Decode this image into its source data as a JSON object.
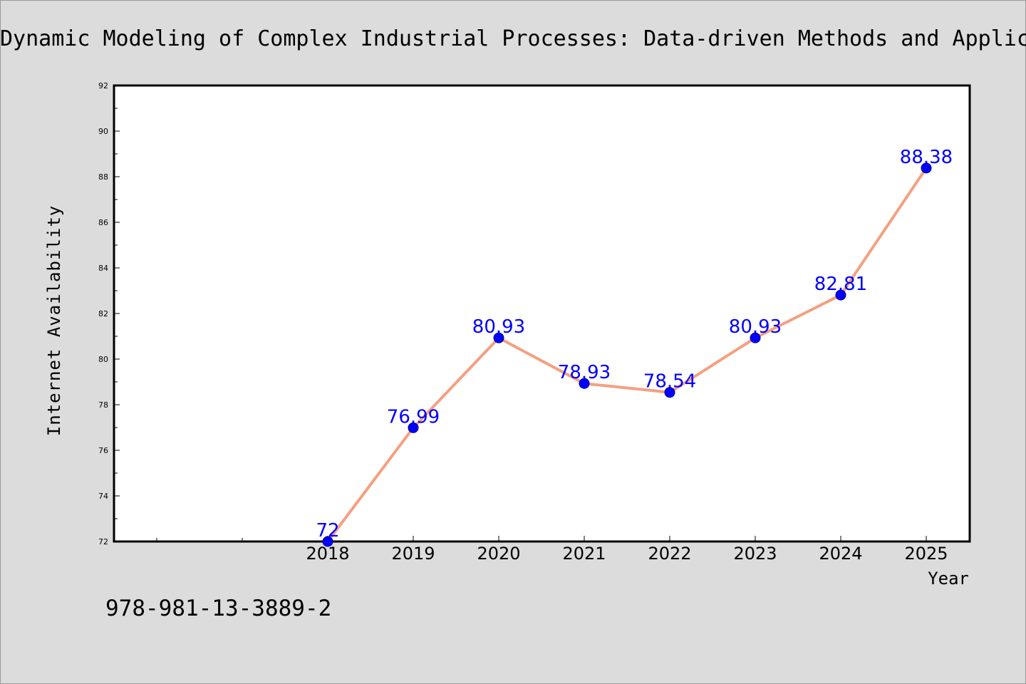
{
  "chart_data": {
    "type": "line",
    "title": "Dynamic Modeling of Complex Industrial Processes: Data-driven Methods and Applications",
    "xlabel": "Year",
    "ylabel": "Internet Availability",
    "categories": [
      "2018",
      "2019",
      "2020",
      "2021",
      "2022",
      "2023",
      "2024",
      "2025"
    ],
    "series": [
      {
        "values": [
          72,
          76.99,
          80.93,
          78.93,
          78.54,
          80.93,
          82.81,
          88.38
        ]
      }
    ],
    "data_labels": [
      "72",
      "76.99",
      "80.93",
      "78.93",
      "78.54",
      "80.93",
      "82.81",
      "88.38"
    ],
    "ylim": [
      72,
      92
    ],
    "yticks": [
      "72",
      "74",
      "76",
      "78",
      "80",
      "82",
      "84",
      "86",
      "88",
      "90",
      "92"
    ],
    "grid": false,
    "legend": "none",
    "colors": {
      "line": "#f4a081",
      "marker": "#0000ff",
      "label": "#0000ff",
      "background": "#dcdcdc",
      "plot_background": "#ffffff"
    }
  },
  "footer": {
    "isbn": "978-981-13-3889-2"
  }
}
